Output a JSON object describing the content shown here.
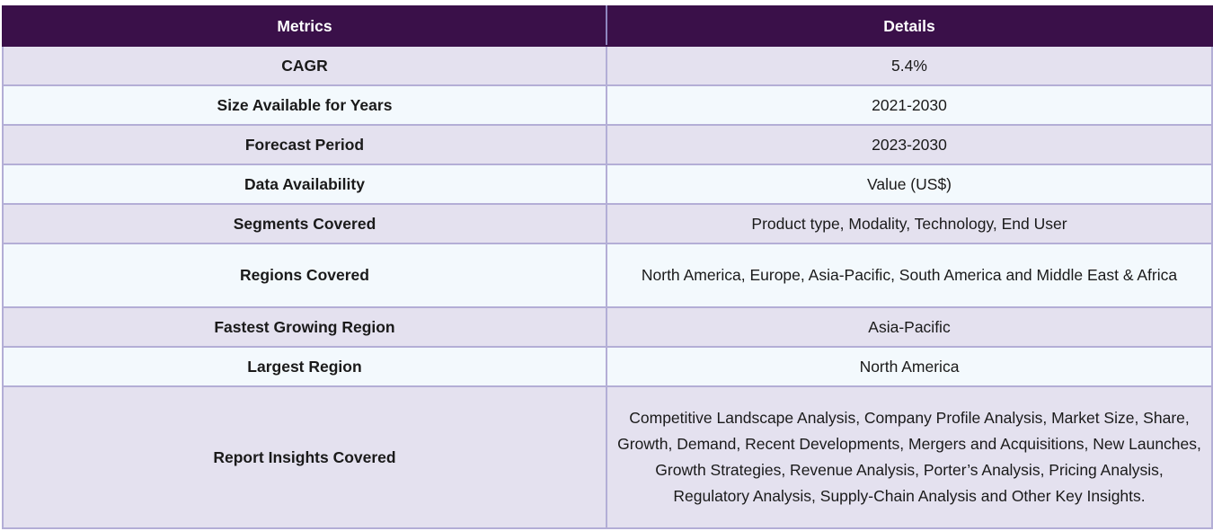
{
  "table": {
    "headers": {
      "metrics": "Metrics",
      "details": "Details"
    },
    "rows": [
      {
        "metric": "CAGR",
        "detail": "5.4%"
      },
      {
        "metric": "Size Available for Years",
        "detail": "2021-2030"
      },
      {
        "metric": "Forecast Period",
        "detail": "2023-2030"
      },
      {
        "metric": "Data Availability",
        "detail": "Value (US$)"
      },
      {
        "metric": "Segments Covered",
        "detail": "Product type, Modality, Technology, End User"
      },
      {
        "metric": "Regions Covered",
        "detail": "North America, Europe, Asia-Pacific, South America and Middle East & Africa"
      },
      {
        "metric": "Fastest Growing Region",
        "detail": "Asia-Pacific"
      },
      {
        "metric": "Largest Region",
        "detail": "North America"
      },
      {
        "metric": "Report Insights Covered",
        "detail": "Competitive Landscape Analysis, Company Profile Analysis, Market Size, Share, Growth, Demand, Recent Developments, Mergers and Acquisitions, New Launches, Growth Strategies, Revenue Analysis, Porter’s Analysis, Pricing Analysis, Regulatory Analysis, Supply-Chain Analysis and Other Key Insights."
      }
    ]
  },
  "colors": {
    "header_bg": "#3a1049",
    "header_text": "#ffffff",
    "row_odd_bg": "#e4e1ef",
    "row_even_bg": "#f3f9fd",
    "border": "#b3aed6"
  }
}
